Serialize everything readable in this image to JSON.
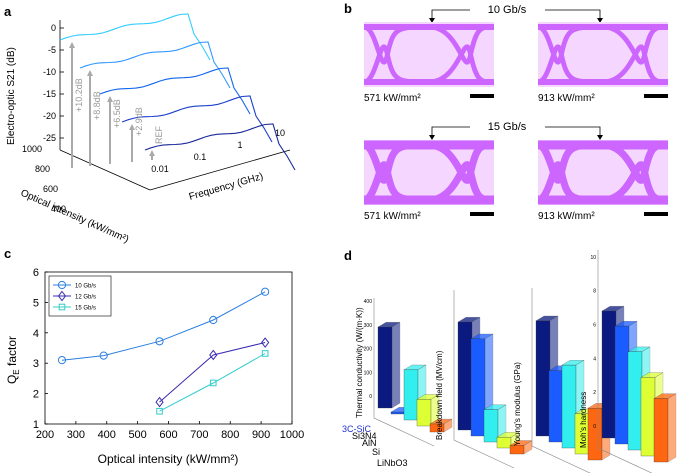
{
  "panels": {
    "a": {
      "label": "a",
      "ylabel": "Electro-optic S21 (dB)",
      "xlabel": "Frequency (GHz)",
      "zlabel": "Optical intensity (kW/mm²)",
      "y_ticks": [
        "0",
        "-5",
        "-10",
        "-15",
        "-20",
        "-25"
      ],
      "x_ticks": [
        "0.01",
        "0.1",
        "1",
        "10"
      ],
      "z_ticks": [
        "1000",
        "800",
        "600",
        "400"
      ],
      "gain_labels": [
        "+10.2dB",
        "+8.8dB",
        "+6.5dB",
        "+2.9dB",
        "REF"
      ],
      "curve_colors": [
        "#33ccff",
        "#3399ff",
        "#1166ee",
        "#1a3fcc",
        "#1a2a99"
      ]
    },
    "b": {
      "label": "b",
      "rate_top": "10 Gb/s",
      "rate_bottom": "15 Gb/s",
      "eye_labels": [
        "571 kW/mm²",
        "913 kW/mm²",
        "571 kW/mm²",
        "913 kW/mm²"
      ],
      "eye_color": "#cc66ff"
    },
    "c": {
      "label": "c",
      "ylabel": "Q",
      "ylabel_sub": "E",
      "ylabel_rest": " factor",
      "xlabel": "Optical intensity (kW/mm²)"
    },
    "d": {
      "label": "d",
      "materials": [
        "3C-SiC",
        "Si3N4",
        "AlN",
        "Si",
        "LiNbO3"
      ],
      "property_labels": [
        "Thermal conductivity (W/(m·K))",
        "Breakdown field (MV/cm)",
        "Young's modulus (GPa)",
        "Moh's hardness"
      ],
      "thermal_ticks": [
        "0",
        "100",
        "200",
        "300",
        "400"
      ],
      "hardness_ticks": [
        "0",
        "2",
        "4",
        "6",
        "8",
        "10"
      ],
      "bar_colors": [
        "#0a1a80",
        "#1a5cff",
        "#33eeee",
        "#ddff33",
        "#ff6611"
      ]
    }
  },
  "chart_data": {
    "type": "line",
    "title": "",
    "xlabel": "Optical intensity (kW/mm²)",
    "ylabel": "QE factor",
    "xlim": [
      200,
      1000
    ],
    "ylim": [
      1,
      6
    ],
    "x_ticks": [
      "200",
      "300",
      "400",
      "500",
      "600",
      "700",
      "800",
      "900",
      "1000"
    ],
    "y_ticks": [
      "1",
      "2",
      "3",
      "4",
      "5",
      "6"
    ],
    "legend_position": "top-left",
    "series": [
      {
        "name": "10 Gb/s",
        "marker": "circle",
        "color": "#2b7fe0",
        "x": [
          255,
          390,
          571,
          745,
          913
        ],
        "y": [
          3.1,
          3.25,
          3.72,
          4.42,
          5.35
        ]
      },
      {
        "name": "12 Gb/s",
        "marker": "diamond",
        "color": "#3a2bb0",
        "x": [
          571,
          745,
          913
        ],
        "y": [
          1.72,
          3.27,
          3.68
        ]
      },
      {
        "name": "15 Gb/s",
        "marker": "square",
        "color": "#33cccc",
        "x": [
          571,
          745,
          913
        ],
        "y": [
          1.42,
          2.35,
          3.32
        ]
      }
    ]
  }
}
